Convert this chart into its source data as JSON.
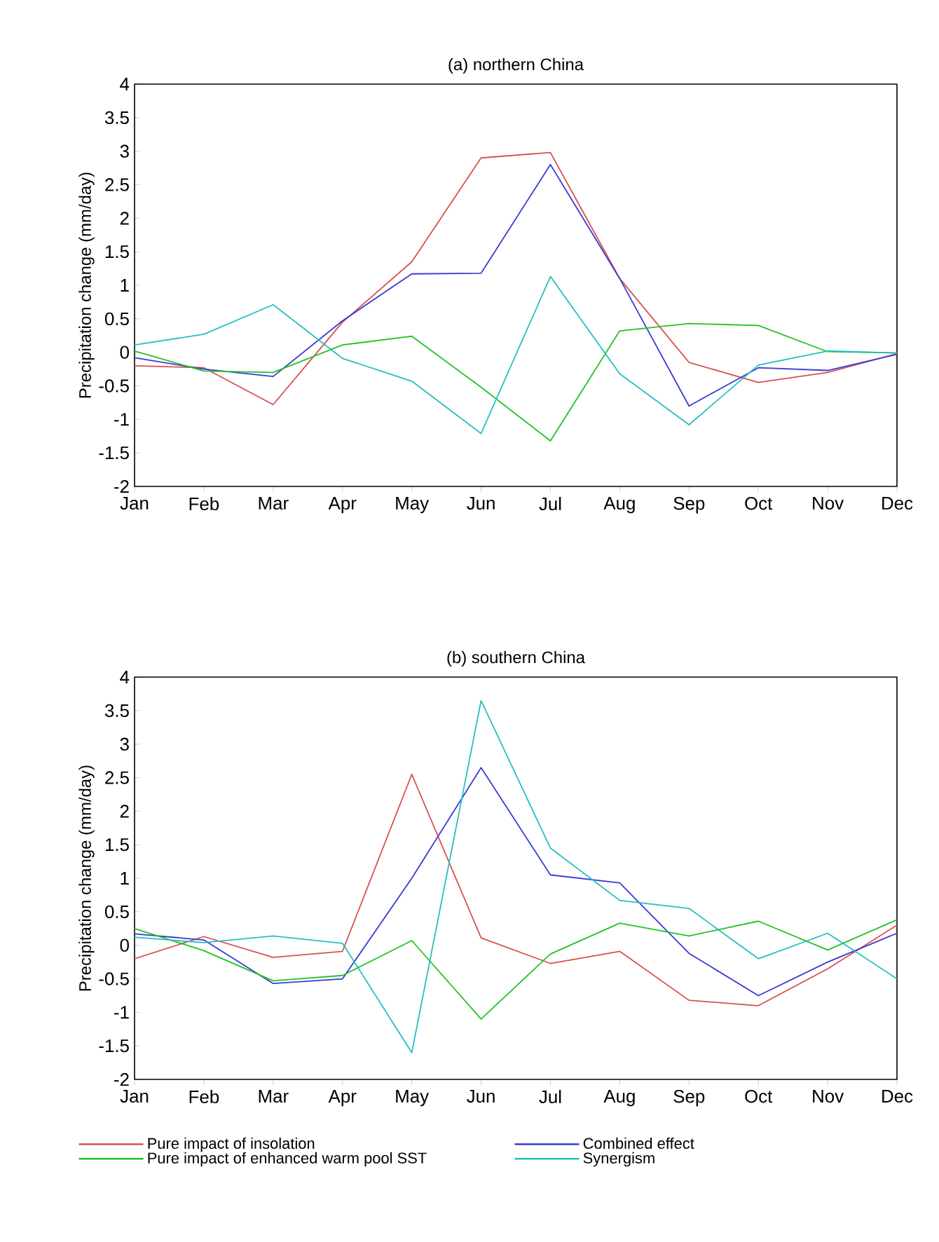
{
  "chart_data": [
    {
      "type": "line",
      "title": "(a) northern China",
      "ylabel": "Precipitation change (mm/day)",
      "categories": [
        "Jan",
        "Feb",
        "Mar",
        "Apr",
        "May",
        "Jun",
        "Jul",
        "Aug",
        "Sep",
        "Oct",
        "Nov",
        "Dec"
      ],
      "ylim": [
        -2,
        4
      ],
      "yticks": [
        -2,
        -1.5,
        -1,
        -0.5,
        0,
        0.5,
        1,
        1.5,
        2,
        2.5,
        3,
        3.5,
        4
      ],
      "legend": false,
      "series": [
        {
          "color": "#d94f4f",
          "values": [
            -0.2,
            -0.23,
            -0.78,
            0.45,
            1.35,
            2.9,
            2.98,
            1.1,
            -0.15,
            -0.45,
            -0.3,
            -0.02
          ]
        },
        {
          "color": "#3a3ad4",
          "values": [
            -0.08,
            -0.25,
            -0.36,
            0.47,
            1.17,
            1.18,
            2.8,
            1.1,
            -0.8,
            -0.23,
            -0.27,
            -0.03
          ]
        },
        {
          "color": "#22c322",
          "values": [
            0.02,
            -0.28,
            -0.3,
            0.11,
            0.24,
            -0.52,
            -1.32,
            0.32,
            0.43,
            0.4,
            0.01,
            -0.01
          ]
        },
        {
          "color": "#27bfbf",
          "values": [
            0.11,
            0.27,
            0.71,
            -0.09,
            -0.43,
            -1.21,
            1.13,
            -0.32,
            -1.08,
            -0.19,
            0.02,
            -0.01
          ]
        }
      ]
    },
    {
      "type": "line",
      "title": "(b) southern China",
      "ylabel": "Precipitation change (mm/day)",
      "categories": [
        "Jan",
        "Feb",
        "Mar",
        "Apr",
        "May",
        "Jun",
        "Jul",
        "Aug",
        "Sep",
        "Oct",
        "Nov",
        "Dec"
      ],
      "ylim": [
        -2,
        4
      ],
      "yticks": [
        -2,
        -1.5,
        -1,
        -0.5,
        0,
        0.5,
        1,
        1.5,
        2,
        2.5,
        3,
        3.5,
        4
      ],
      "legend": "bottom",
      "series": [
        {
          "name": "Pure impact of insolation",
          "color": "#d94f4f",
          "values": [
            -0.2,
            0.13,
            -0.18,
            -0.09,
            2.55,
            0.11,
            -0.27,
            -0.09,
            -0.82,
            -0.9,
            -0.35,
            0.3
          ]
        },
        {
          "name": "Combined effect",
          "color": "#3a3ad4",
          "values": [
            0.17,
            0.08,
            -0.57,
            -0.5,
            1.0,
            2.65,
            1.05,
            0.93,
            -0.12,
            -0.75,
            -0.25,
            0.18
          ]
        },
        {
          "name": "Pure impact of enhanced warm pool SST",
          "color": "#22c322",
          "values": [
            0.25,
            -0.08,
            -0.53,
            -0.45,
            0.07,
            -1.1,
            -0.13,
            0.33,
            0.14,
            0.36,
            -0.07,
            0.38
          ]
        },
        {
          "name": "Synergism",
          "color": "#27bfbf",
          "values": [
            0.12,
            0.04,
            0.14,
            0.03,
            -1.6,
            3.65,
            1.45,
            0.67,
            0.55,
            -0.2,
            0.18,
            -0.5
          ]
        }
      ]
    }
  ]
}
